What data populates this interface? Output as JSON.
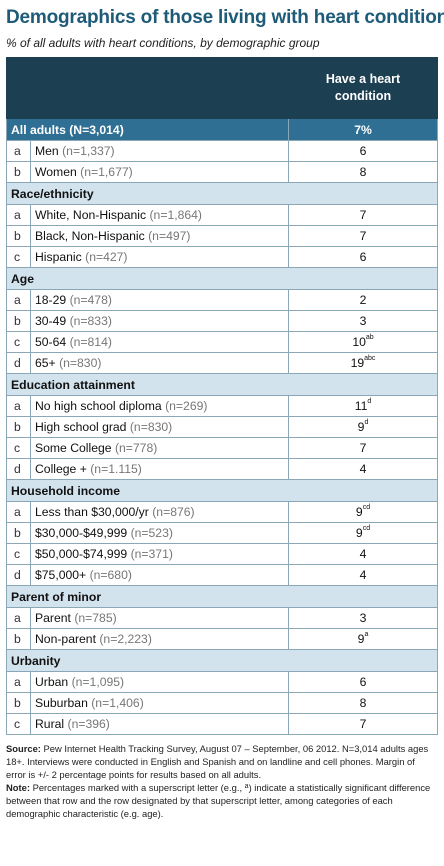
{
  "title": "Demographics of those living with heart conditions",
  "subtitle": "% of all adults with heart conditions, by demographic group",
  "column_header": "Have a heart condition",
  "all_adults": {
    "label": "All adults (N=3,014)",
    "value": "7%"
  },
  "groups": [
    {
      "name": "",
      "rows": [
        {
          "letter": "a",
          "label": "Men",
          "n": "(n=1,337)",
          "value": "6",
          "sup": ""
        },
        {
          "letter": "b",
          "label": "Women",
          "n": "(n=1,677)",
          "value": "8",
          "sup": ""
        }
      ]
    },
    {
      "name": "Race/ethnicity",
      "rows": [
        {
          "letter": "a",
          "label": "White, Non-Hispanic",
          "n": "(n=1,864)",
          "value": "7",
          "sup": ""
        },
        {
          "letter": "b",
          "label": "Black, Non-Hispanic",
          "n": "(n=497)",
          "value": "7",
          "sup": ""
        },
        {
          "letter": "c",
          "label": "Hispanic",
          "n": "(n=427)",
          "value": "6",
          "sup": ""
        }
      ]
    },
    {
      "name": "Age",
      "rows": [
        {
          "letter": "a",
          "label": "18-29",
          "n": "(n=478)",
          "value": "2",
          "sup": ""
        },
        {
          "letter": "b",
          "label": "30-49",
          "n": "(n=833)",
          "value": "3",
          "sup": ""
        },
        {
          "letter": "c",
          "label": "50-64",
          "n": "(n=814)",
          "value": "10",
          "sup": "ab"
        },
        {
          "letter": "d",
          "label": "65+",
          "n": "(n=830)",
          "value": "19",
          "sup": "abc"
        }
      ]
    },
    {
      "name": "Education attainment",
      "rows": [
        {
          "letter": "a",
          "label": "No high school diploma",
          "n": "(n=269)",
          "value": "11",
          "sup": "d"
        },
        {
          "letter": "b",
          "label": "High school grad",
          "n": "(n=830)",
          "value": "9",
          "sup": "d"
        },
        {
          "letter": "c",
          "label": "Some College",
          "n": "(n=778)",
          "value": "7",
          "sup": ""
        },
        {
          "letter": "d",
          "label": "College +",
          "n": "(n=1.115)",
          "value": "4",
          "sup": ""
        }
      ]
    },
    {
      "name": "Household income",
      "rows": [
        {
          "letter": "a",
          "label": "Less than $30,000/yr",
          "n": "(n=876)",
          "value": "9",
          "sup": "cd"
        },
        {
          "letter": "b",
          "label": "$30,000-$49,999",
          "n": "(n=523)",
          "value": "9",
          "sup": "cd"
        },
        {
          "letter": "c",
          "label": "$50,000-$74,999",
          "n": "(n=371)",
          "value": "4",
          "sup": ""
        },
        {
          "letter": "d",
          "label": "$75,000+",
          "n": "(n=680)",
          "value": "4",
          "sup": ""
        }
      ]
    },
    {
      "name": "Parent of minor",
      "rows": [
        {
          "letter": "a",
          "label": "Parent",
          "n": "(n=785)",
          "value": "3",
          "sup": ""
        },
        {
          "letter": "b",
          "label": "Non-parent",
          "n": "(n=2,223)",
          "value": "9",
          "sup": "a"
        }
      ]
    },
    {
      "name": "Urbanity",
      "rows": [
        {
          "letter": "a",
          "label": "Urban",
          "n": "(n=1,095)",
          "value": "6",
          "sup": ""
        },
        {
          "letter": "b",
          "label": "Suburban",
          "n": "(n=1,406)",
          "value": "8",
          "sup": ""
        },
        {
          "letter": "c",
          "label": "Rural",
          "n": "(n=396)",
          "value": "7",
          "sup": ""
        }
      ]
    }
  ],
  "footer": {
    "source_label": "Source:",
    "source_text": "Pew Internet Health Tracking Survey, August 07 – September, 06 2012. N=3,014 adults ages 18+. Interviews were conducted in English and Spanish and on landline and cell phones. Margin of error is +/- 2 percentage points for results based on all adults.",
    "note_label": "Note:",
    "note_text_1": "Percentages marked with a superscript letter (e.g., ",
    "note_sup": "a",
    "note_text_2": ") indicate a statistically significant difference between that row and the row designated by that superscript letter, among categories of each demographic characteristic (e.g. age)."
  },
  "colors": {
    "title": "#1d5b78",
    "header_bg": "#1d3f52",
    "all_row_bg": "#2f6f94",
    "section_bg": "#d3e3ee"
  }
}
